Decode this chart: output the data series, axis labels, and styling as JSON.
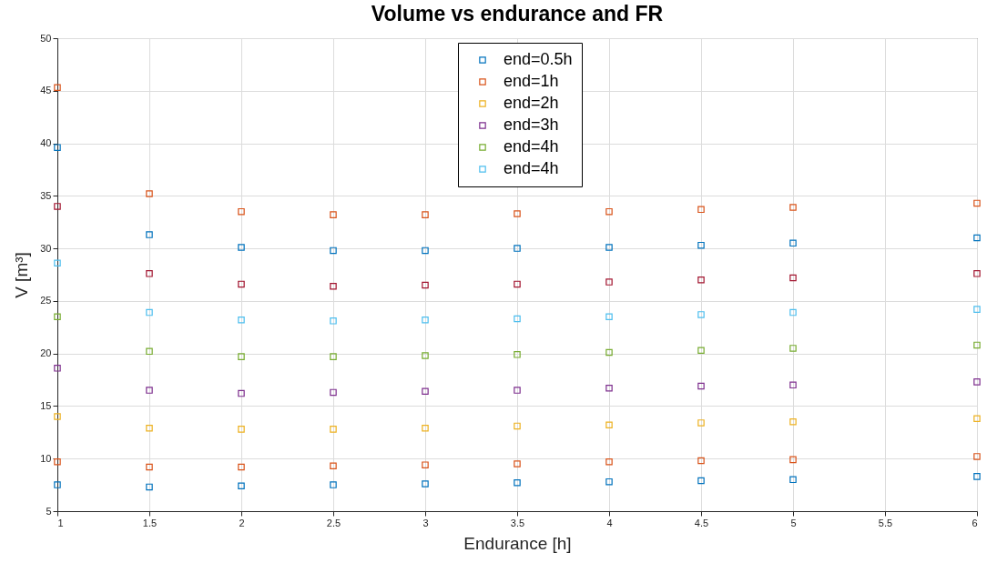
{
  "chart_data": {
    "type": "scatter",
    "title": "Volume vs endurance and FR",
    "xlabel": "Endurance [h]",
    "ylabel": "V [m³]",
    "x": [
      1,
      1.5,
      2,
      2.5,
      3,
      3.5,
      4,
      4.5,
      5,
      6
    ],
    "xlim": [
      1,
      6
    ],
    "xticks": [
      1,
      1.5,
      2,
      2.5,
      3,
      3.5,
      4,
      4.5,
      5,
      5.5,
      6
    ],
    "ylim": [
      5,
      50
    ],
    "yticks": [
      5,
      10,
      15,
      20,
      25,
      30,
      35,
      40,
      45,
      50
    ],
    "grid": true,
    "legend": "top",
    "marker": "square",
    "series": [
      {
        "name": "end=0.5h",
        "color": "#0072bd",
        "values": [
          7.5,
          7.3,
          7.4,
          7.5,
          7.6,
          7.7,
          7.8,
          7.9,
          8.0,
          8.3
        ]
      },
      {
        "name": "end=1h",
        "color": "#d95319",
        "values": [
          9.7,
          9.2,
          9.2,
          9.3,
          9.4,
          9.5,
          9.7,
          9.8,
          9.9,
          10.2
        ]
      },
      {
        "name": "end=2h",
        "color": "#edb120",
        "values": [
          14.0,
          12.9,
          12.8,
          12.8,
          12.9,
          13.1,
          13.2,
          13.4,
          13.5,
          13.8
        ]
      },
      {
        "name": "end=3h",
        "color": "#7e2f8e",
        "values": [
          18.6,
          16.5,
          16.2,
          16.3,
          16.4,
          16.5,
          16.7,
          16.9,
          17.0,
          17.3
        ]
      },
      {
        "name": "end=4h",
        "color": "#77ac30",
        "values": [
          23.5,
          20.2,
          19.7,
          19.7,
          19.8,
          19.9,
          20.1,
          20.3,
          20.5,
          20.8
        ]
      },
      {
        "name": "end=4h",
        "color": "#4dbeee",
        "values": [
          28.6,
          23.9,
          23.2,
          23.1,
          23.2,
          23.3,
          23.5,
          23.7,
          23.9,
          24.2
        ]
      },
      {
        "color": "#a2142f",
        "values": [
          34.0,
          27.6,
          26.6,
          26.4,
          26.5,
          26.6,
          26.8,
          27.0,
          27.2,
          27.6
        ]
      },
      {
        "color": "#0072bd",
        "values": [
          39.6,
          31.3,
          30.1,
          29.8,
          29.8,
          30.0,
          30.1,
          30.3,
          30.5,
          31.0
        ]
      },
      {
        "color": "#d95319",
        "values": [
          45.3,
          35.2,
          33.5,
          33.2,
          33.2,
          33.3,
          33.5,
          33.7,
          33.9,
          34.3
        ]
      }
    ]
  }
}
